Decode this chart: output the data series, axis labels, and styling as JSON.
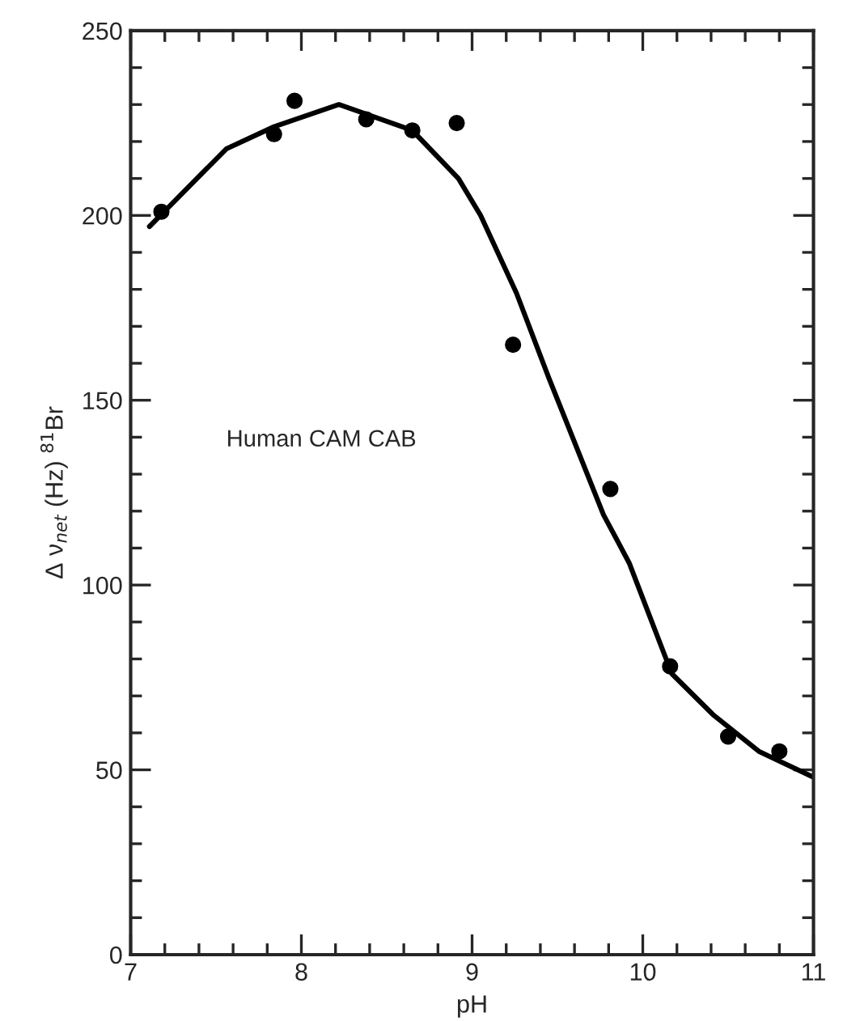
{
  "chart_data": {
    "type": "scatter",
    "xlabel": "pH",
    "ylabel": "Δ ν$_{net}$ (Hz) $^{81}$Br",
    "annotations": [
      "Human CAM CAB"
    ],
    "series": [
      {
        "color": "#000000",
        "marker": "circle",
        "x": [
          7.18,
          7.84,
          7.96,
          8.38,
          8.65,
          8.91,
          9.24,
          9.81,
          10.16,
          10.5,
          10.8
        ],
        "values": [
          201,
          222,
          231,
          226,
          223,
          225,
          165,
          126,
          78,
          59,
          55
        ]
      },
      {
        "type": "line",
        "color": "#000000",
        "marker": "none",
        "line_style": "solid",
        "x": [
          7.11,
          7.56,
          7.84,
          8.22,
          8.65,
          8.92,
          9.05,
          9.26,
          9.45,
          9.77,
          9.92,
          10.17,
          10.41,
          10.68,
          11.0
        ],
        "values": [
          197,
          218,
          224,
          230,
          223,
          210,
          200,
          179,
          156,
          119,
          106,
          76,
          65,
          55,
          48
        ]
      }
    ],
    "xlim": [
      7,
      11
    ],
    "ylim": [
      0,
      250
    ],
    "xticks": [
      7,
      {
        "value": 7.2,
        "label": null
      },
      {
        "value": 7.4,
        "label": null
      },
      {
        "value": 7.6,
        "label": null
      },
      {
        "value": 7.8,
        "label": null
      },
      8,
      {
        "value": 8.2,
        "label": null
      },
      {
        "value": 8.4,
        "label": null
      },
      {
        "value": 8.6,
        "label": null
      },
      {
        "value": 8.8,
        "label": null
      },
      9,
      {
        "value": 9.2,
        "label": null
      },
      {
        "value": 9.4,
        "label": null
      },
      {
        "value": 9.6,
        "label": null
      },
      {
        "value": 9.8,
        "label": null
      },
      10,
      {
        "value": 10.2,
        "label": null
      },
      {
        "value": 10.4,
        "label": null
      },
      {
        "value": 10.6,
        "label": null
      },
      {
        "value": 10.8,
        "label": null
      },
      11
    ],
    "yticks": [
      0,
      {
        "value": 10,
        "label": null
      },
      {
        "value": 20,
        "label": null
      },
      {
        "value": 30,
        "label": null
      },
      {
        "value": 40,
        "label": null
      },
      50,
      {
        "value": 60,
        "label": null
      },
      {
        "value": 70,
        "label": null
      },
      {
        "value": 80,
        "label": null
      },
      {
        "value": 90,
        "label": null
      },
      100,
      {
        "value": 110,
        "label": null
      },
      {
        "value": 120,
        "label": null
      },
      {
        "value": 130,
        "label": null
      },
      {
        "value": 140,
        "label": null
      },
      150,
      {
        "value": 160,
        "label": null
      },
      {
        "value": 170,
        "label": null
      },
      {
        "value": 180,
        "label": null
      },
      {
        "value": 190,
        "label": null
      },
      200,
      {
        "value": 210,
        "label": null
      },
      {
        "value": 220,
        "label": null
      },
      {
        "value": 230,
        "label": null
      },
      {
        "value": 240,
        "label": null
      },
      250
    ],
    "grid": false,
    "legend": false
  }
}
